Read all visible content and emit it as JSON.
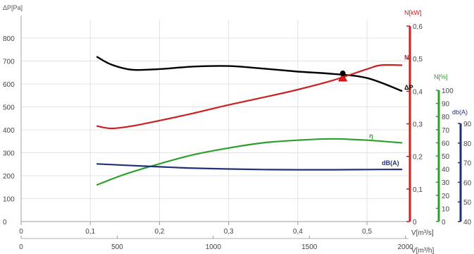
{
  "chart_data": {
    "type": "line",
    "x_axis_primary": {
      "label": "V[m³/s]",
      "ticks": [
        "0",
        "0,1",
        "0,2",
        "0,3",
        "0,4",
        "0,5"
      ],
      "range": [
        0,
        0.56
      ]
    },
    "x_axis_secondary": {
      "label": "V[m³/h]",
      "ticks": [
        "0",
        "500",
        "1000",
        "1500",
        "2000"
      ]
    },
    "y_axis_dp": {
      "label": "ΔP[Pa]",
      "ticks": [
        "0",
        "100",
        "200",
        "300",
        "400",
        "500",
        "600",
        "700",
        "800"
      ],
      "range": [
        0,
        880
      ],
      "color": "#888888"
    },
    "y_axis_n": {
      "label": "N[kW]",
      "ticks": [
        "0",
        "0,1",
        "0,2",
        "0,3",
        "0,4",
        "0,5",
        "0,6"
      ],
      "range": [
        0,
        0.6
      ],
      "color": "#cc1f1f"
    },
    "y_axis_eff": {
      "label": "N[%]",
      "ticks": [
        "0",
        "10",
        "20",
        "30",
        "40",
        "50",
        "60",
        "70",
        "80",
        "90",
        "100"
      ],
      "range": [
        0,
        100
      ],
      "color": "#2e9e2e"
    },
    "y_axis_db": {
      "label": "db(A)",
      "ticks": [
        "40",
        "50",
        "60",
        "70",
        "80",
        "90"
      ],
      "range": [
        40,
        90
      ],
      "color": "#22307a"
    },
    "series": [
      {
        "name": "ΔP",
        "axis": "dp",
        "color": "#000000",
        "x": [
          0.11,
          0.13,
          0.16,
          0.2,
          0.25,
          0.3,
          0.35,
          0.4,
          0.45,
          0.5,
          0.55
        ],
        "y": [
          718,
          685,
          662,
          665,
          676,
          678,
          667,
          654,
          644,
          626,
          570
        ]
      },
      {
        "name": "N",
        "axis": "n",
        "color": "#cc1f1f",
        "x": [
          0.11,
          0.13,
          0.16,
          0.2,
          0.25,
          0.3,
          0.35,
          0.4,
          0.45,
          0.5,
          0.52,
          0.55
        ],
        "y": [
          0.293,
          0.286,
          0.293,
          0.31,
          0.333,
          0.358,
          0.381,
          0.405,
          0.433,
          0.468,
          0.48,
          0.48
        ]
      },
      {
        "name": "η",
        "axis": "eff",
        "color": "#2e9e2e",
        "x": [
          0.11,
          0.15,
          0.2,
          0.25,
          0.3,
          0.35,
          0.4,
          0.45,
          0.5,
          0.55
        ],
        "y": [
          28,
          36,
          44,
          51,
          56,
          60,
          62,
          63,
          62,
          60
        ]
      },
      {
        "name": "dB(A)",
        "axis": "db",
        "color": "#22307a",
        "x": [
          0.11,
          0.15,
          0.2,
          0.25,
          0.3,
          0.35,
          0.4,
          0.45,
          0.5,
          0.55
        ],
        "y": [
          69.4,
          68.7,
          67.9,
          67.2,
          66.8,
          66.5,
          66.4,
          66.4,
          66.5,
          66.6
        ]
      }
    ],
    "operating_point": {
      "x": 0.465,
      "dp": 646,
      "n_marker": 0.444
    },
    "grid": true
  }
}
